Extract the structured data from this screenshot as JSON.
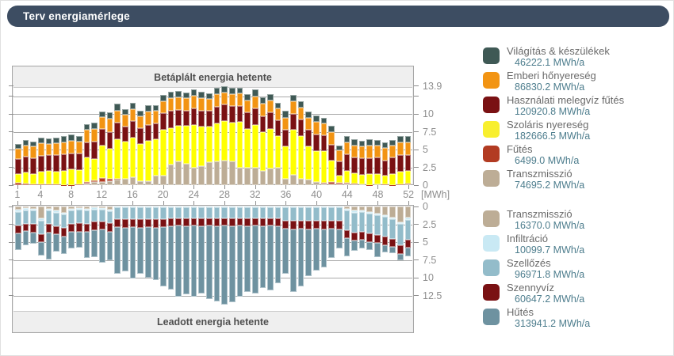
{
  "title_bar": {
    "label": "Terv energiamérlege"
  },
  "colors": {
    "titlebar_bg": "#3d4d62",
    "strip_bg": "#efefef",
    "gridline": "#a9a9a9",
    "axis_text": "#8e8e8e",
    "legend_name_text": "#6a6a6a",
    "legend_value_text": "#4d7d8d"
  },
  "chart_data": [
    {
      "type": "bar",
      "stacked": true,
      "direction": "up",
      "title": "Betáplált energia hetente",
      "unit": "[MWh]",
      "weeks": 52,
      "x_tick_labels": [
        "1",
        "4",
        "8",
        "12",
        "16",
        "20",
        "24",
        "28",
        "32",
        "36",
        "40",
        "44",
        "48",
        "52"
      ],
      "ylim": [
        0,
        13.9
      ],
      "y_ticks": [
        {
          "v": 0,
          "label": "0"
        },
        {
          "v": 2.5,
          "label": "2.5"
        },
        {
          "v": 5,
          "label": "5"
        },
        {
          "v": 7.5,
          "label": "7.5"
        },
        {
          "v": 10,
          "label": "10"
        },
        {
          "v": 12.5,
          "label": ""
        },
        {
          "v": 13.9,
          "label": "13.9"
        }
      ],
      "gridlines": [
        2.5,
        5,
        7.5,
        10,
        12.5
      ],
      "series": [
        {
          "name": "Transzmisszió",
          "color": "#bdad96",
          "annual": "74695.2 MWh/a",
          "values": [
            0,
            0,
            0,
            0,
            0,
            0,
            0,
            0,
            0,
            0.2,
            0.4,
            0.5,
            0.6,
            0.8,
            0.9,
            1.1,
            0.6,
            0.6,
            1.3,
            1.3,
            2.9,
            3.3,
            3.0,
            2.5,
            2.7,
            3.2,
            3.3,
            3.4,
            3.3,
            2.4,
            2.4,
            2.5,
            2.0,
            2.3,
            2.4,
            0.9,
            1.5,
            0.9,
            0.8,
            0.5,
            0.2,
            0.1,
            0.1,
            0.2,
            0.1,
            0.1,
            0,
            0.1,
            0,
            0,
            0,
            0.1
          ]
        },
        {
          "name": "Fűtés",
          "color": "#b23b22",
          "annual": "6499.0 MWh/a",
          "values": [
            0.35,
            0.2,
            0.1,
            0.15,
            0.1,
            0.1,
            0.05,
            0.05,
            0.1,
            0.25,
            0.3,
            0.45,
            0.3,
            0.1,
            0,
            0,
            0,
            0,
            0,
            0,
            0,
            0,
            0,
            0,
            0,
            0,
            0,
            0,
            0,
            0,
            0,
            0,
            0,
            0,
            0,
            0,
            0,
            0,
            0,
            0,
            0.15,
            0.3,
            0.25,
            0.15,
            0.1,
            0.05,
            0.05,
            0.05,
            0.1,
            0.05,
            0.1,
            0.1
          ]
        },
        {
          "name": "Szoláris nyereség",
          "color": "#ffff00",
          "annual": "182666.5 MWh/a",
          "values": [
            1.2,
            1.6,
            1.5,
            1.7,
            1.9,
            1.8,
            2.0,
            2.2,
            2.0,
            3.4,
            3.0,
            4.6,
            4.2,
            5.6,
            5.2,
            5.6,
            5.2,
            5.6,
            5.2,
            6.5,
            5.1,
            5.0,
            5.3,
            6.0,
            5.5,
            5.0,
            5.4,
            5.6,
            5.5,
            6.5,
            5.5,
            6.0,
            5.5,
            5.6,
            4.5,
            4.6,
            6.3,
            6.0,
            4.6,
            4.3,
            4.4,
            3.0,
            1.0,
            1.7,
            1.5,
            1.3,
            1.5,
            1.4,
            1.2,
            1.5,
            1.8,
            1.8
          ]
        },
        {
          "name": "Használati melegvíz fűtés",
          "color": "#7a1113",
          "annual": "120920.8 MWh/a",
          "values": [
            2.1,
            2.2,
            2.2,
            2.3,
            2.2,
            2.3,
            2.3,
            2.2,
            2.3,
            2.2,
            2.4,
            2.3,
            2.4,
            2.3,
            2.2,
            2.3,
            2.2,
            2.3,
            2.2,
            2.3,
            2.4,
            2.3,
            2.2,
            2.3,
            2.3,
            2.2,
            2.3,
            2.3,
            2.3,
            2.2,
            2.3,
            2.3,
            2.2,
            2.3,
            2.2,
            2.3,
            2.2,
            2.3,
            2.4,
            2.3,
            2.2,
            2.3,
            2.0,
            2.3,
            2.2,
            2.3,
            2.2,
            2.3,
            2.2,
            2.3,
            2.3,
            2.2
          ]
        },
        {
          "name": "Emberi hőnyereség",
          "color": "#f29413",
          "annual": "86830.2 MWh/a",
          "values": [
            1.5,
            1.6,
            1.6,
            1.7,
            1.6,
            1.7,
            1.7,
            1.8,
            1.7,
            1.7,
            1.8,
            1.7,
            1.8,
            1.7,
            1.6,
            1.7,
            1.7,
            1.8,
            1.7,
            1.7,
            1.8,
            1.7,
            1.7,
            1.8,
            1.7,
            1.7,
            1.8,
            1.7,
            1.7,
            1.8,
            1.7,
            1.7,
            1.8,
            1.7,
            1.7,
            1.7,
            1.8,
            1.7,
            1.7,
            1.8,
            1.7,
            1.7,
            1.5,
            1.7,
            1.7,
            1.7,
            1.8,
            1.7,
            1.7,
            1.7,
            1.8,
            1.8
          ]
        },
        {
          "name": "Világítás & készülékek",
          "color": "#3f5955",
          "annual": "46222.1 MWh/a",
          "values": [
            0.6,
            0.7,
            0.7,
            0.8,
            0.8,
            0.8,
            0.8,
            0.9,
            0.8,
            0.8,
            0.9,
            0.8,
            0.9,
            0.9,
            0.8,
            0.9,
            0.8,
            0.9,
            0.8,
            0.9,
            0.9,
            0.9,
            0.8,
            0.9,
            0.9,
            0.8,
            0.9,
            0.9,
            0.9,
            0.8,
            0.9,
            0.9,
            0.8,
            0.9,
            0.8,
            0.9,
            0.9,
            0.9,
            0.8,
            0.9,
            0.8,
            0.9,
            0.7,
            0.8,
            0.8,
            0.8,
            0.9,
            0.8,
            0.8,
            0.8,
            0.9,
            0.9
          ]
        }
      ]
    },
    {
      "type": "bar",
      "stacked": true,
      "direction": "down",
      "title": "Leadott energia hetente",
      "unit": "[MWh]",
      "weeks": 52,
      "ylim": [
        0,
        13.9
      ],
      "y_ticks": [
        {
          "v": 0,
          "label": "0"
        },
        {
          "v": 2.5,
          "label": "2.5"
        },
        {
          "v": 5,
          "label": "5"
        },
        {
          "v": 7.5,
          "label": "7.5"
        },
        {
          "v": 10,
          "label": "10"
        },
        {
          "v": 12.5,
          "label": "12.5"
        }
      ],
      "gridlines": [
        2.5,
        5,
        7.5,
        10,
        12.5
      ],
      "series": [
        {
          "name": "Transzmisszió",
          "color": "#bdad96",
          "annual": "16370.0 MWh/a",
          "values": [
            0.5,
            0.25,
            0.3,
            1.7,
            0.3,
            0.6,
            0.9,
            0.3,
            0.2,
            0.3,
            0.15,
            0.2,
            0.4,
            0,
            0,
            0,
            0,
            0,
            0,
            0,
            0,
            0,
            0,
            0,
            0,
            0,
            0,
            0,
            0,
            0,
            0,
            0,
            0,
            0,
            0,
            0,
            0,
            0,
            0,
            0,
            0,
            0,
            0,
            0.3,
            0.6,
            0.5,
            0.8,
            1.0,
            1.2,
            1.5,
            2.2,
            1.6
          ]
        },
        {
          "name": "Infiltráció",
          "color": "#c9e9f4",
          "annual": "10099.7 MWh/a",
          "values": [
            0.25,
            0.25,
            0.25,
            0.25,
            0.25,
            0.25,
            0.25,
            0.25,
            0.25,
            0.25,
            0.25,
            0.25,
            0.25,
            0.12,
            0.12,
            0.12,
            0.12,
            0.12,
            0.12,
            0.12,
            0.12,
            0.12,
            0.12,
            0.12,
            0.12,
            0.12,
            0.12,
            0.12,
            0.12,
            0.12,
            0.12,
            0.12,
            0.12,
            0.12,
            0.12,
            0.12,
            0.12,
            0.12,
            0.12,
            0.12,
            0.12,
            0.12,
            0.12,
            0.25,
            0.25,
            0.25,
            0.25,
            0.25,
            0.25,
            0.25,
            0.25,
            0.25
          ]
        },
        {
          "name": "Szellőzés",
          "color": "#93bcca",
          "annual": "96971.8 MWh/a",
          "values": [
            1.9,
            1.9,
            1.9,
            1.9,
            1.9,
            1.9,
            1.9,
            1.9,
            1.9,
            1.9,
            1.7,
            1.7,
            1.7,
            1.7,
            1.7,
            1.7,
            1.7,
            1.7,
            1.7,
            1.7,
            1.5,
            1.5,
            1.5,
            1.5,
            1.5,
            1.5,
            1.5,
            1.5,
            1.5,
            1.5,
            1.5,
            1.5,
            1.5,
            1.5,
            1.5,
            1.9,
            1.9,
            1.9,
            1.9,
            1.9,
            1.9,
            1.9,
            1.9,
            2.8,
            2.8,
            2.8,
            2.8,
            2.8,
            2.8,
            2.8,
            3.0,
            2.9
          ]
        },
        {
          "name": "Szennyvíz",
          "color": "#7a1113",
          "annual": "60647.2 MWh/a",
          "values": [
            1.2,
            1.1,
            1.2,
            1.1,
            1.2,
            1.1,
            1.2,
            1.1,
            1.2,
            1.1,
            1.2,
            1.1,
            1.2,
            1.1,
            1.2,
            1.1,
            1.2,
            1.1,
            1.2,
            1.1,
            1.2,
            1.1,
            1.2,
            1.1,
            1.2,
            1.1,
            1.2,
            1.1,
            1.2,
            1.1,
            1.2,
            1.1,
            1.2,
            1.1,
            1.2,
            1.1,
            1.2,
            1.1,
            1.2,
            1.1,
            1.2,
            1.1,
            1.2,
            1.1,
            1.2,
            1.1,
            1.2,
            1.1,
            1.2,
            1.1,
            1.2,
            1.1
          ]
        },
        {
          "name": "Hűtés",
          "color": "#6e92a0",
          "annual": "313941.2 MWh/a",
          "values": [
            2.3,
            1.95,
            1.6,
            1.9,
            3.8,
            2.45,
            2.4,
            2.3,
            2.2,
            3.7,
            3.85,
            4.6,
            4.0,
            6.55,
            6.05,
            7.15,
            6.45,
            7.05,
            7.35,
            8.25,
            8.85,
            9.95,
            9.55,
            9.95,
            9.35,
            10.25,
            10.55,
            11.05,
            10.65,
            9.95,
            9.15,
            9.45,
            8.65,
            9.05,
            7.95,
            6.35,
            8.75,
            8.15,
            6.55,
            5.85,
            5.35,
            4.15,
            2.65,
            2.5,
            1.4,
            1.2,
            1.1,
            2.0,
            1.0,
            0.9,
            0.9,
            1.2
          ]
        }
      ]
    }
  ],
  "legend": {
    "groups": [
      {
        "items": [
          {
            "label": "Világítás & készülékek",
            "value": "46222.1 MWh/a",
            "color": "#3f5955"
          },
          {
            "label": "Emberi hőnyereség",
            "value": "86830.2 MWh/a",
            "color": "#f29413"
          },
          {
            "label": "Használati melegvíz fűtés",
            "value": "120920.8 MWh/a",
            "color": "#7a1113"
          },
          {
            "label": "Szoláris nyereség",
            "value": "182666.5 MWh/a",
            "color": "#f8ef2e"
          },
          {
            "label": "Fűtés",
            "value": "6499.0 MWh/a",
            "color": "#b23b22"
          },
          {
            "label": "Transzmisszió",
            "value": "74695.2 MWh/a",
            "color": "#bdad96"
          }
        ]
      },
      {
        "items": [
          {
            "label": "Transzmisszió",
            "value": "16370.0 MWh/a",
            "color": "#bdad96"
          },
          {
            "label": "Infiltráció",
            "value": "10099.7 MWh/a",
            "color": "#c9e9f4"
          },
          {
            "label": "Szellőzés",
            "value": "96971.8 MWh/a",
            "color": "#93bcca"
          },
          {
            "label": "Szennyvíz",
            "value": "60647.2 MWh/a",
            "color": "#7a1113"
          },
          {
            "label": "Hűtés",
            "value": "313941.2 MWh/a",
            "color": "#6e92a0"
          }
        ]
      }
    ]
  }
}
